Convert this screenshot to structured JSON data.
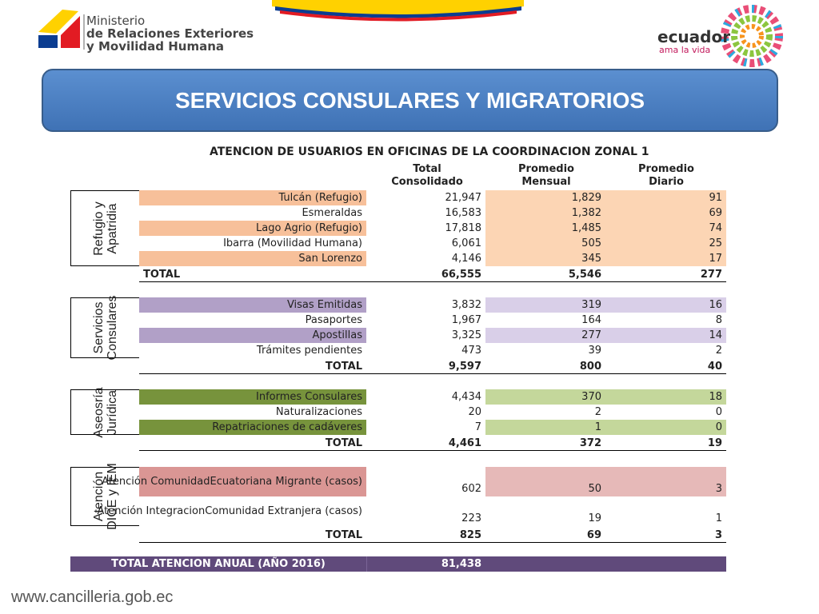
{
  "header": {
    "ministry": [
      "Ministerio",
      "de Relaciones Exteriores",
      "y Movilidad Humana"
    ],
    "brand": "ecuador",
    "slogan": "ama la vida"
  },
  "title": "SERVICIOS CONSULARES Y MIGRATORIOS",
  "table": {
    "caption": "ATENCION DE USUARIOS EN OFICINAS DE LA COORDINACION ZONAL 1",
    "columns": [
      [
        "Total",
        "Consolidado"
      ],
      [
        "Promedio",
        "Mensual"
      ],
      [
        "Promedio",
        "Diario"
      ]
    ],
    "groups": [
      {
        "label": [
          "Refugio y",
          "Apatridia"
        ],
        "rows": [
          [
            "Tulcán (Refugio)",
            "21,947",
            "1,829",
            "91"
          ],
          [
            "Esmeraldas",
            "16,583",
            "1,382",
            "69"
          ],
          [
            "Lago Agrio (Refugio)",
            "17,818",
            "1,485",
            "74"
          ],
          [
            "Ibarra (Movilidad Humana)",
            "6,061",
            "505",
            "25"
          ],
          [
            "San Lorenzo",
            "4,146",
            "345",
            "17"
          ]
        ],
        "total": [
          "TOTAL",
          "66,555",
          "5,546",
          "277"
        ]
      },
      {
        "label": [
          "Servicios",
          "Consulares"
        ],
        "rows": [
          [
            "Visas Emitidas",
            "3,832",
            "319",
            "16"
          ],
          [
            "Pasaportes",
            "1,967",
            "164",
            "8"
          ],
          [
            "Apostillas",
            "3,325",
            "277",
            "14"
          ],
          [
            "Trámites pendientes",
            "473",
            "39",
            "2"
          ]
        ],
        "total": [
          "TOTAL",
          "9,597",
          "800",
          "40"
        ]
      },
      {
        "label": [
          "Aseosría",
          "Jurídica"
        ],
        "rows": [
          [
            "Informes Consulares",
            "4,434",
            "370",
            "18"
          ],
          [
            "Naturalizaciones",
            "20",
            "2",
            "0"
          ],
          [
            "Repatriaciones de cadáveres",
            "7",
            "1",
            "0"
          ]
        ],
        "total": [
          "TOTAL",
          "4,461",
          "372",
          "19"
        ]
      },
      {
        "label": [
          "Atención",
          "DICE y IEM"
        ],
        "rows": [
          [
            [
              "Atención Comunidad",
              "Ecuatoriana Migrante (casos)"
            ],
            "602",
            "50",
            "3"
          ],
          [
            [
              "Atención Integracion",
              "Comunidad Extranjera (casos)"
            ],
            "223",
            "19",
            "1"
          ]
        ],
        "total": [
          "TOTAL",
          "825",
          "69",
          "3"
        ]
      }
    ],
    "grand_total": [
      "TOTAL ATENCION ANUAL (AÑO 2016)",
      "81,438"
    ]
  },
  "footer": "www.cancilleria.gob.ec"
}
